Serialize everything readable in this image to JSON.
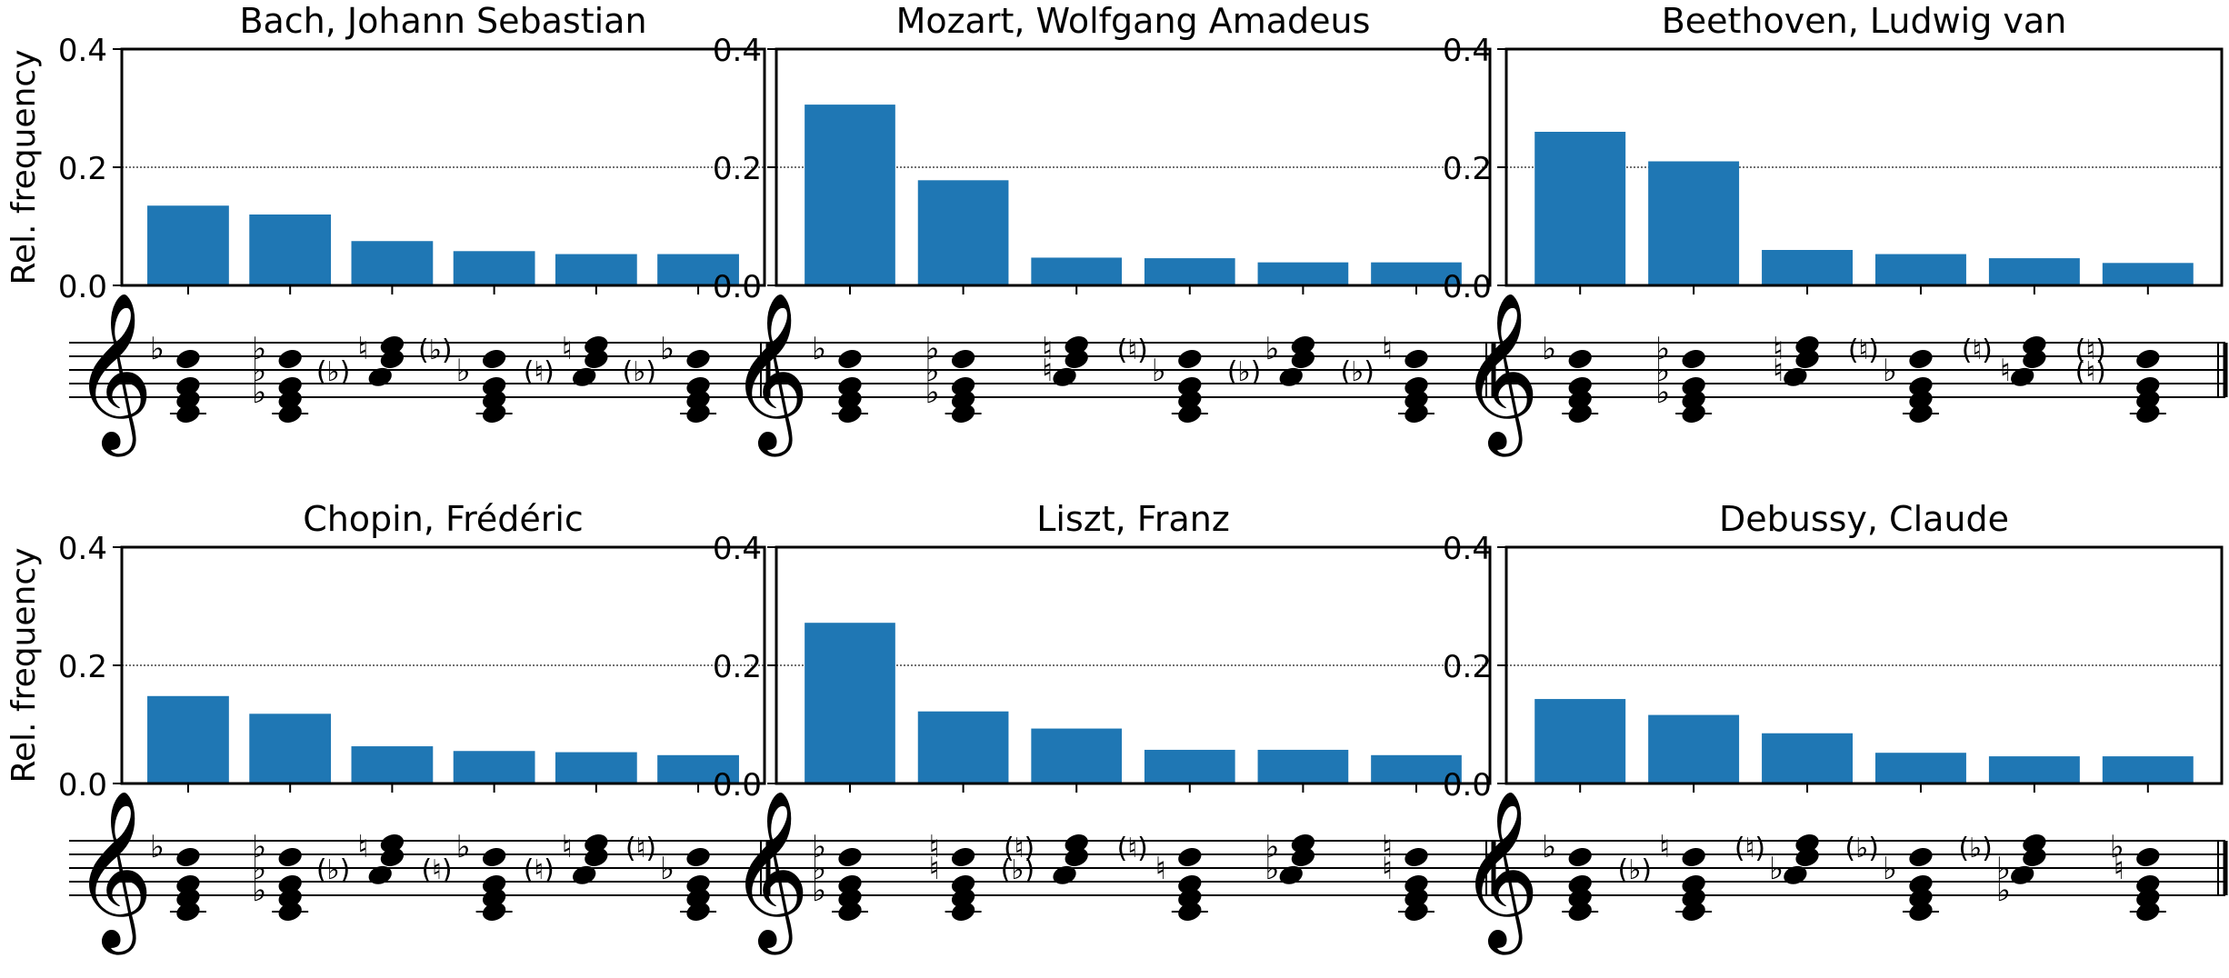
{
  "chart_data": [
    {
      "type": "bar",
      "title": "Bach, Johann Sebastian",
      "ylabel": "Rel. frequency",
      "ylim": [
        0,
        0.4
      ],
      "yticks": [
        "0.0",
        "0.2",
        "0.4"
      ],
      "values": [
        0.135,
        0.12,
        0.075,
        0.058,
        0.053,
        0.053
      ],
      "bar_color": "#1f77b4"
    },
    {
      "type": "bar",
      "title": "Mozart, Wolfgang Amadeus",
      "ylabel": "",
      "ylim": [
        0,
        0.4
      ],
      "yticks": [
        "0.0",
        "0.2",
        "0.4"
      ],
      "values": [
        0.306,
        0.178,
        0.047,
        0.046,
        0.039,
        0.039
      ],
      "bar_color": "#1f77b4"
    },
    {
      "type": "bar",
      "title": "Beethoven, Ludwig van",
      "ylabel": "",
      "ylim": [
        0,
        0.4
      ],
      "yticks": [
        "0.0",
        "0.2",
        "0.4"
      ],
      "values": [
        0.26,
        0.21,
        0.06,
        0.053,
        0.046,
        0.038
      ],
      "bar_color": "#1f77b4"
    },
    {
      "type": "bar",
      "title": "Chopin, Frédéric",
      "ylabel": "Rel. frequency",
      "ylim": [
        0,
        0.4
      ],
      "yticks": [
        "0.0",
        "0.2",
        "0.4"
      ],
      "values": [
        0.148,
        0.118,
        0.063,
        0.055,
        0.053,
        0.048
      ],
      "bar_color": "#1f77b4"
    },
    {
      "type": "bar",
      "title": "Liszt, Franz",
      "ylabel": "",
      "ylim": [
        0,
        0.4
      ],
      "yticks": [
        "0.0",
        "0.2",
        "0.4"
      ],
      "values": [
        0.272,
        0.122,
        0.093,
        0.057,
        0.057,
        0.048
      ],
      "bar_color": "#1f77b4"
    },
    {
      "type": "bar",
      "title": "Debussy, Claude",
      "ylabel": "",
      "ylim": [
        0,
        0.4
      ],
      "yticks": [
        "0.0",
        "0.2",
        "0.4"
      ],
      "values": [
        0.143,
        0.116,
        0.085,
        0.052,
        0.046,
        0.046
      ],
      "bar_color": "#1f77b4"
    }
  ],
  "notation": {
    "clef": "𝄞",
    "flat": "♭",
    "natural": "♮",
    "flat_paren": "(♭)",
    "natural_paren": "(♮)"
  },
  "style": {
    "gridline": "#444444",
    "axis": "#000000",
    "note": "#000000"
  }
}
